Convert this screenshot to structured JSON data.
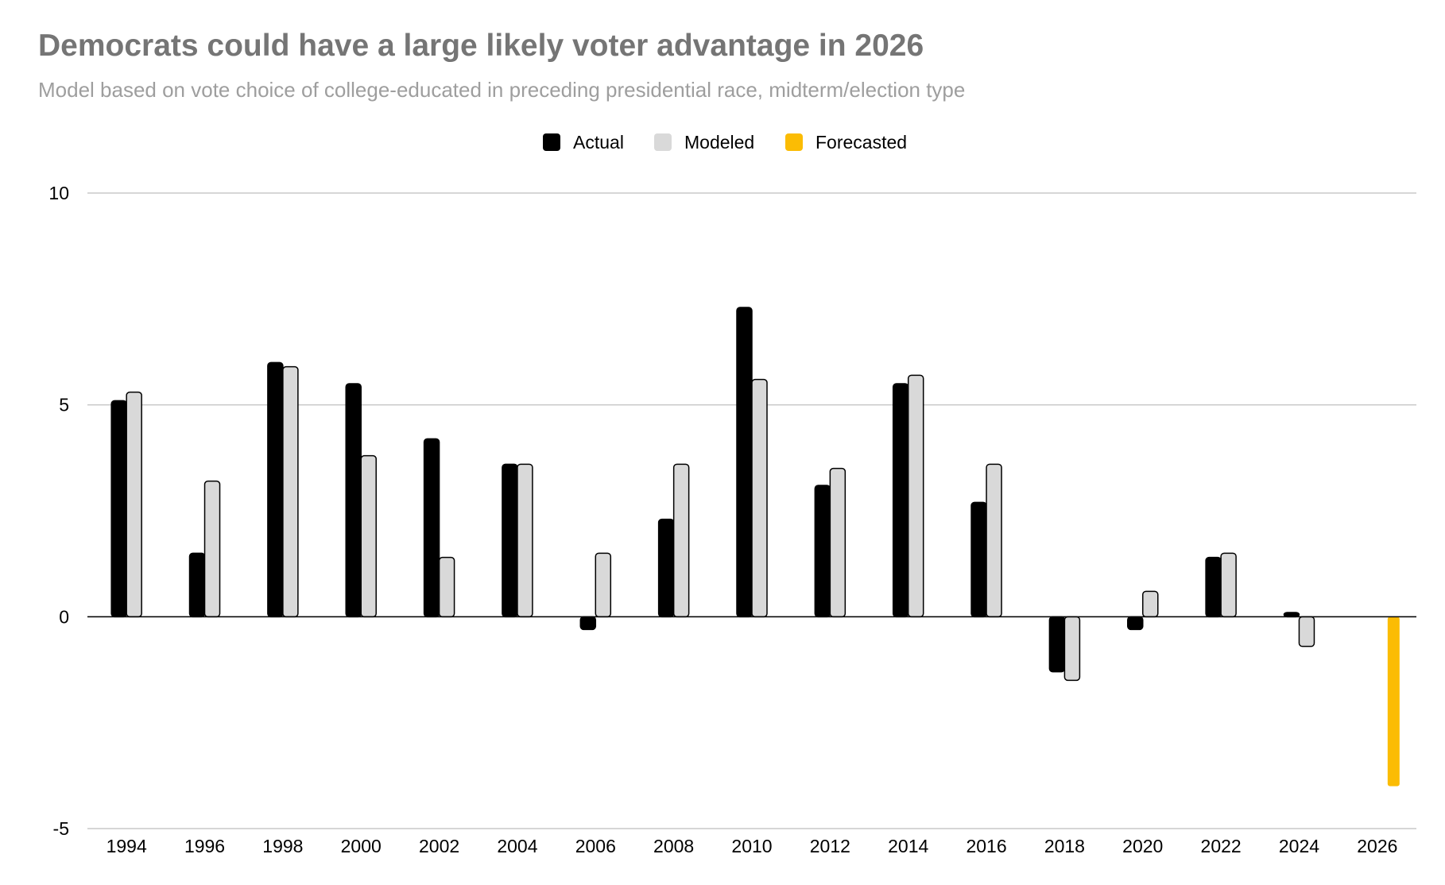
{
  "chart_data": {
    "type": "bar",
    "title": "Democrats could have a large likely voter advantage in 2026",
    "subtitle": "Model based on vote choice of college-educated in preceding presidential race, midterm/election type",
    "xlabel": "",
    "ylabel": "",
    "ylim": [
      -5,
      10
    ],
    "yticks": [
      10,
      5,
      0,
      -5
    ],
    "grid": true,
    "legend_position": "top-center",
    "categories": [
      "1994",
      "1996",
      "1998",
      "2000",
      "2002",
      "2004",
      "2006",
      "2008",
      "2010",
      "2012",
      "2014",
      "2016",
      "2018",
      "2020",
      "2022",
      "2024",
      "2026"
    ],
    "series": [
      {
        "name": "Actual",
        "color": "#000000",
        "values": [
          5.1,
          1.5,
          6.0,
          5.5,
          4.2,
          3.6,
          -0.3,
          2.3,
          7.3,
          3.1,
          5.5,
          2.7,
          -1.3,
          -0.3,
          1.4,
          0.1,
          null
        ]
      },
      {
        "name": "Modeled",
        "color": "#d9d9d9",
        "values": [
          5.3,
          3.2,
          5.9,
          3.8,
          1.4,
          3.6,
          1.5,
          3.6,
          5.6,
          3.5,
          5.7,
          3.6,
          -1.5,
          0.6,
          1.5,
          -0.7,
          null
        ]
      },
      {
        "name": "Forecasted",
        "color": "#fbbc04",
        "values": [
          null,
          null,
          null,
          null,
          null,
          null,
          null,
          null,
          null,
          null,
          null,
          null,
          null,
          null,
          null,
          null,
          -4.0
        ]
      }
    ]
  }
}
